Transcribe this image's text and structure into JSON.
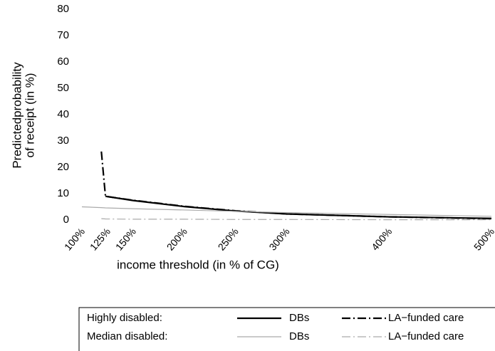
{
  "chart_data": {
    "type": "line",
    "xlabel": "income threshold (in % of CG)",
    "ylabel": [
      "Predictedprobability",
      "of receipt (in %)"
    ],
    "x": [
      100,
      119,
      123,
      150,
      200,
      250,
      300,
      400,
      500
    ],
    "series": [
      {
        "name": "DBs",
        "color": "#000000",
        "dash": "solid",
        "width": 2.2,
        "values": [
          null,
          null,
          9,
          7.4,
          5.1,
          3.4,
          2.3,
          1.2,
          0.6
        ]
      },
      {
        "name": "LA−funded care",
        "color": "#000000",
        "dash": "dashdot",
        "width": 2.2,
        "values": [
          null,
          26,
          9,
          7.5,
          5.2,
          3.5,
          2.3,
          1.2,
          0.5
        ]
      },
      {
        "name": "DBs",
        "color": "#aaaaaa",
        "dash": "solid",
        "width": 1.2,
        "values": [
          5,
          4.7,
          4.6,
          4.3,
          3.8,
          3.3,
          2.8,
          2.1,
          1.4
        ]
      },
      {
        "name": "LA−funded care",
        "color": "#aaaaaa",
        "dash": "dashdot",
        "width": 1.2,
        "values": [
          null,
          0.5,
          0.4,
          0.3,
          0.3,
          0.2,
          0.2,
          0.1,
          0.1
        ]
      }
    ],
    "legend_groups": [
      "Highly disabled:",
      "Median disabled:"
    ],
    "xlim": [
      100,
      500
    ],
    "ylim": [
      0,
      80
    ],
    "xticks": [
      {
        "value": 100,
        "label": "100%"
      },
      {
        "value": 125,
        "label": "125%"
      },
      {
        "value": 150,
        "label": "150%"
      },
      {
        "value": 200,
        "label": "200%"
      },
      {
        "value": 250,
        "label": "250%"
      },
      {
        "value": 300,
        "label": "300%"
      },
      {
        "value": 400,
        "label": "400%"
      },
      {
        "value": 500,
        "label": "500%"
      }
    ],
    "yticks": [
      0,
      10,
      20,
      30,
      40,
      50,
      60,
      70,
      80
    ]
  }
}
